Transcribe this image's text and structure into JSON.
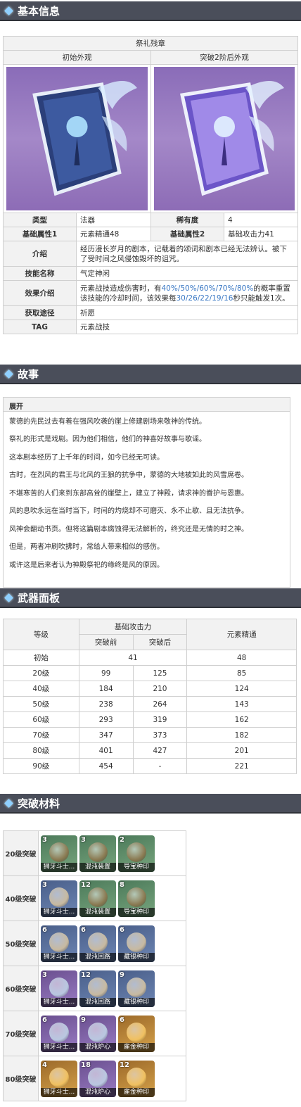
{
  "sections": {
    "basic": "基本信息",
    "story": "故事",
    "panel": "武器面板",
    "materials": "突破材料"
  },
  "weapon": {
    "name": "祭礼残章",
    "img_initial_label": "初始外观",
    "img_ascended_label": "突破2阶后外观",
    "rows": {
      "type_label": "类型",
      "type_value": "法器",
      "rarity_label": "稀有度",
      "rarity_value": "4",
      "attr1_label": "基础属性1",
      "attr1_value": "元素精通48",
      "attr2_label": "基础属性2",
      "attr2_value": "基础攻击力41",
      "intro_label": "介绍",
      "intro_value": "经历漫长岁月的剧本，记载着的颂词和剧本已经无法辨认。被下了受时间之风侵蚀毁坏的诅咒。",
      "skill_label": "技能名称",
      "skill_value": "气定神闲",
      "effect_label": "效果介绍",
      "effect_a": "元素战技造成伤害时，有",
      "effect_b": "40%/50%/60%/70%/80%",
      "effect_c": "的概率重置该技能的冷却时间，该效果每",
      "effect_d": "30/26/22/19/16",
      "effect_e": "秒只能触发1次。",
      "obtain_label": "获取途径",
      "obtain_value": "祈愿",
      "tag_label": "TAG",
      "tag_value": "元素战技"
    }
  },
  "story": {
    "toggle": "展开",
    "paragraphs": [
      "蒙德的先民过去有着在强风吹袭的崖上修建剧场来敬神的传统。",
      "祭礼的形式是戏剧。因为他们相信，他们的神喜好故事与歌谣。",
      "这本剧本经历了上千年的时间，如今已经无可读。",
      "古时，在烈风的君王与北风的王狼的抗争中，蒙德的大地被如此的风雪席卷。",
      "不堪寒苦的人们来到东部高耸的崖壁上，建立了神殿，请求神的眷护与恩惠。",
      "风的息吹永远在当时当下，时间的灼烧却不可磨灭、永不止歇、且无法抗争。",
      "风神会翻动书页。但将这篇剧本腐蚀得无法解析的，终究还是无情的时之神。",
      "但是，两者冲刷吹拂时，常给人带来相似的感伤。",
      "或许这是后来者认为神殿祭祀的缘终是风的原因。"
    ]
  },
  "panel": {
    "h_level": "等级",
    "h_atk": "基础攻击力",
    "h_before": "突破前",
    "h_after": "突破后",
    "h_em": "元素精通",
    "rows": [
      {
        "level": "初始",
        "atk": "41",
        "em": "48"
      },
      {
        "level": "20级",
        "before": "99",
        "after": "125",
        "em": "85"
      },
      {
        "level": "40级",
        "before": "184",
        "after": "210",
        "em": "124"
      },
      {
        "level": "50级",
        "before": "238",
        "after": "264",
        "em": "143"
      },
      {
        "level": "60级",
        "before": "293",
        "after": "319",
        "em": "162"
      },
      {
        "level": "70级",
        "before": "347",
        "after": "373",
        "em": "182"
      },
      {
        "level": "80级",
        "before": "401",
        "after": "427",
        "em": "201"
      },
      {
        "level": "90级",
        "before": "454",
        "after": "-",
        "em": "221"
      }
    ]
  },
  "materials": [
    {
      "level": "20级突破",
      "items": [
        {
          "count": "3",
          "name": "狮牙斗士...",
          "color": "green"
        },
        {
          "count": "3",
          "name": "混沌装置",
          "color": "green"
        },
        {
          "count": "2",
          "name": "导宝种印",
          "color": "green"
        }
      ]
    },
    {
      "level": "40级突破",
      "items": [
        {
          "count": "3",
          "name": "狮牙斗士...",
          "color": "blue"
        },
        {
          "count": "12",
          "name": "混沌装置",
          "color": "green"
        },
        {
          "count": "8",
          "name": "导宝种印",
          "color": "green"
        }
      ]
    },
    {
      "level": "50级突破",
      "items": [
        {
          "count": "6",
          "name": "狮牙斗士...",
          "color": "blue"
        },
        {
          "count": "6",
          "name": "混沌回路",
          "color": "blue"
        },
        {
          "count": "6",
          "name": "藏银种印",
          "color": "blue"
        }
      ]
    },
    {
      "level": "60级突破",
      "items": [
        {
          "count": "3",
          "name": "狮牙斗士...",
          "color": "purple"
        },
        {
          "count": "12",
          "name": "混沌回路",
          "color": "blue"
        },
        {
          "count": "9",
          "name": "藏银种印",
          "color": "blue"
        }
      ]
    },
    {
      "level": "70级突破",
      "items": [
        {
          "count": "6",
          "name": "狮牙斗士...",
          "color": "purple"
        },
        {
          "count": "9",
          "name": "混沌炉心",
          "color": "purple"
        },
        {
          "count": "6",
          "name": "雇金种印",
          "color": "gold"
        }
      ]
    },
    {
      "level": "80级突破",
      "items": [
        {
          "count": "4",
          "name": "狮牙斗士...",
          "color": "gold"
        },
        {
          "count": "18",
          "name": "混沌炉心",
          "color": "purple"
        },
        {
          "count": "12",
          "name": "雇金种印",
          "color": "gold"
        }
      ]
    }
  ]
}
